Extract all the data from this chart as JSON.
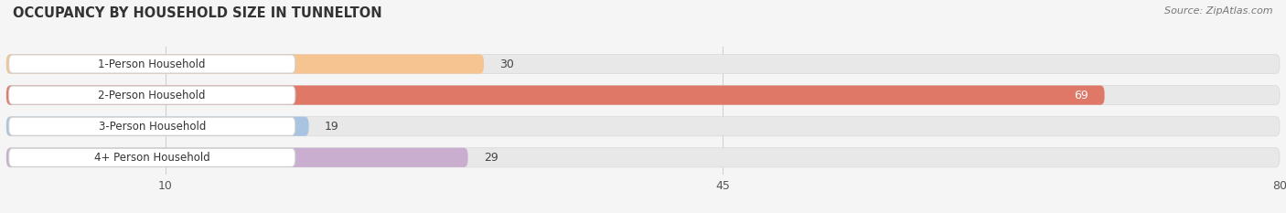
{
  "title": "OCCUPANCY BY HOUSEHOLD SIZE IN TUNNELTON",
  "source": "Source: ZipAtlas.com",
  "categories": [
    "1-Person Household",
    "2-Person Household",
    "3-Person Household",
    "4+ Person Household"
  ],
  "values": [
    30,
    69,
    19,
    29
  ],
  "bar_colors": [
    "#f5c490",
    "#e07868",
    "#a8c4e0",
    "#c9aecf"
  ],
  "bar_label_inside": [
    false,
    true,
    false,
    false
  ],
  "xlim": [
    0,
    80
  ],
  "xticks": [
    10,
    45,
    80
  ],
  "background_color": "#f5f5f5",
  "bar_bg_color": "#e8e8e8",
  "figsize": [
    14.06,
    2.33
  ],
  "dpi": 100
}
